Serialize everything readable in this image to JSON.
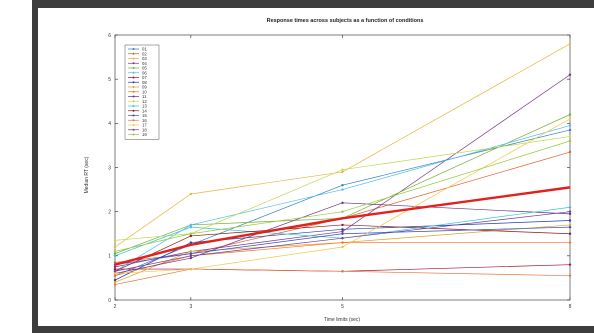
{
  "chart_data": {
    "type": "line",
    "title": "Response times across subjects as a function of conditions",
    "xlabel": "Time limits (sec)",
    "ylabel": "Median RT (sec)",
    "x": [
      2,
      3,
      5,
      8
    ],
    "xlim": [
      2,
      8
    ],
    "ylim": [
      0,
      6
    ],
    "xticks": [
      2,
      3,
      5,
      8
    ],
    "yticks": [
      0,
      1,
      2,
      3,
      4,
      5,
      6
    ],
    "grid": false,
    "legend_position": "top-left",
    "series": [
      {
        "name": "01",
        "color": "#2f7fc1",
        "values": [
          0.55,
          1.25,
          2.6,
          3.85
        ]
      },
      {
        "name": "02",
        "color": "#e05a24",
        "values": [
          0.85,
          1.05,
          1.85,
          3.35
        ]
      },
      {
        "name": "03",
        "color": "#e6b53d",
        "values": [
          1.2,
          2.4,
          2.9,
          5.8
        ]
      },
      {
        "name": "04",
        "color": "#7e2f8e",
        "values": [
          0.75,
          1.1,
          1.55,
          5.1
        ]
      },
      {
        "name": "05",
        "color": "#77ac30",
        "values": [
          1.05,
          1.7,
          1.85,
          4.2
        ]
      },
      {
        "name": "06",
        "color": "#4dbeee",
        "values": [
          0.65,
          1.7,
          2.5,
          3.95
        ]
      },
      {
        "name": "07",
        "color": "#a2142f",
        "values": [
          0.7,
          0.7,
          0.65,
          0.8
        ]
      },
      {
        "name": "08",
        "color": "#1f3fb0",
        "values": [
          0.45,
          1.3,
          1.6,
          1.8
        ]
      },
      {
        "name": "09",
        "color": "#e6a020",
        "values": [
          0.4,
          1.1,
          1.3,
          1.7
        ]
      },
      {
        "name": "10",
        "color": "#ff6b1a",
        "values": [
          0.55,
          1.0,
          1.3,
          1.3
        ]
      },
      {
        "name": "11",
        "color": "#6b2f85",
        "values": [
          0.6,
          0.95,
          2.2,
          1.95
        ]
      },
      {
        "name": "12",
        "color": "#bcd94a",
        "values": [
          1.35,
          1.5,
          2.95,
          3.7
        ]
      },
      {
        "name": "13",
        "color": "#2bc7d9",
        "values": [
          1.0,
          1.65,
          1.4,
          2.1
        ]
      },
      {
        "name": "14",
        "color": "#8b1a1a",
        "values": [
          0.65,
          1.45,
          1.7,
          1.5
        ]
      },
      {
        "name": "15",
        "color": "#3050c8",
        "values": [
          0.8,
          1.05,
          1.5,
          1.65
        ]
      },
      {
        "name": "16",
        "color": "#e8743b",
        "values": [
          0.35,
          0.7,
          0.65,
          0.55
        ]
      },
      {
        "name": "17",
        "color": "#f2c744",
        "values": [
          0.6,
          0.7,
          1.2,
          4.1
        ]
      },
      {
        "name": "18",
        "color": "#6a3d9a",
        "values": [
          0.65,
          1.0,
          1.4,
          2.0
        ]
      },
      {
        "name": "19",
        "color": "#98c838",
        "values": [
          1.1,
          1.5,
          2.0,
          3.6
        ]
      }
    ],
    "mean_line": {
      "color": "#e3201b",
      "values": [
        0.8,
        1.25,
        1.85,
        2.55
      ]
    }
  }
}
